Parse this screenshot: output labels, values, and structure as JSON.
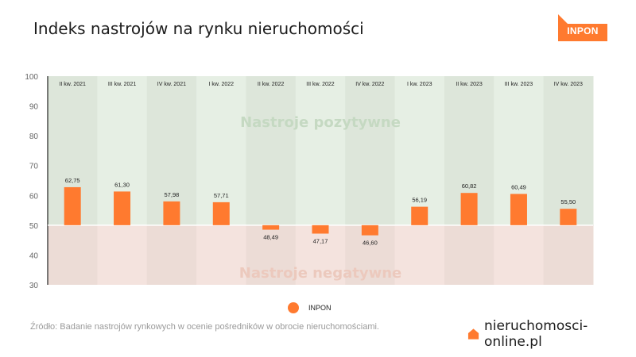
{
  "title": "Indeks nastrojów na rynku nieruchomości",
  "logo": {
    "text": "INPON"
  },
  "legend": {
    "label": "INPON"
  },
  "source": "Źródło: Badanie nastrojów rynkowych w ocenie pośredników w obrocie nieruchomościami.",
  "brand": {
    "text": "nieruchomosci-online.pl"
  },
  "colors": {
    "accent": "#ff7a2f",
    "positive_zone": "#e6efe4",
    "positive_zone_alt": "#dde6da",
    "negative_zone": "#f4e3de",
    "negative_zone_alt": "#ecdcd6",
    "positive_text": "#c5d9c2",
    "negative_text": "#ecc9bd"
  },
  "chart_data": {
    "type": "bar",
    "categories": [
      "II kw. 2021",
      "III kw. 2021",
      "IV kw. 2021",
      "I kw. 2022",
      "II kw. 2022",
      "III kw. 2022",
      "IV kw. 2022",
      "I kw. 2023",
      "II kw. 2023",
      "III kw. 2023",
      "IV kw. 2023"
    ],
    "series": [
      {
        "name": "INPON",
        "values": [
          62.75,
          61.3,
          57.98,
          57.71,
          48.49,
          47.17,
          46.6,
          56.19,
          60.82,
          60.49,
          55.5
        ],
        "value_labels": [
          "62,75",
          "61,30",
          "57,98",
          "57,71",
          "48,49",
          "47,17",
          "46,60",
          "56,19",
          "60,82",
          "60,49",
          "55,50"
        ]
      }
    ],
    "baseline": 50,
    "ylim": [
      30,
      100
    ],
    "yticks": [
      30,
      40,
      50,
      60,
      70,
      80,
      90,
      100
    ],
    "zone_labels": {
      "positive": "Nastroje pozytywne",
      "negative": "Nastroje negatywne"
    }
  }
}
